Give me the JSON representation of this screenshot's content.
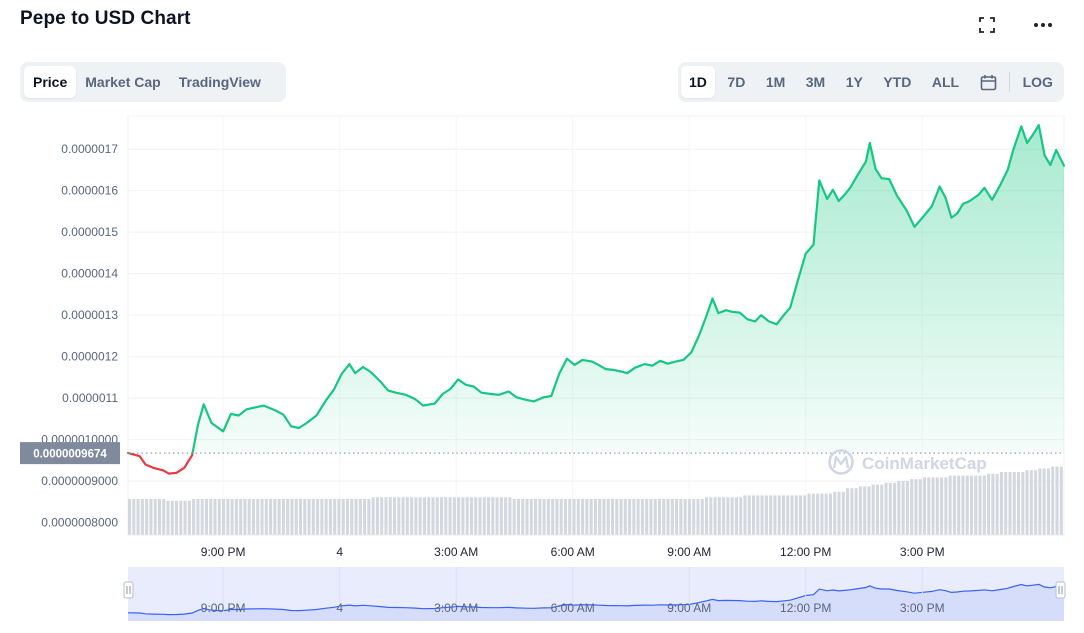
{
  "header": {
    "title": "Pepe to USD Chart",
    "fullscreen_icon": "fullscreen-icon",
    "more_icon": "more-horizontal-icon"
  },
  "view_tabs": [
    {
      "label": "Price",
      "active": true
    },
    {
      "label": "Market Cap",
      "active": false
    },
    {
      "label": "TradingView",
      "active": false
    }
  ],
  "range_tabs": [
    {
      "label": "1D",
      "active": true
    },
    {
      "label": "7D",
      "active": false
    },
    {
      "label": "1M",
      "active": false
    },
    {
      "label": "3M",
      "active": false
    },
    {
      "label": "1Y",
      "active": false
    },
    {
      "label": "YTD",
      "active": false
    },
    {
      "label": "ALL",
      "active": false
    }
  ],
  "calendar_icon": "calendar-icon",
  "log_label": "LOG",
  "watermark": "CoinMarketCap",
  "colors": {
    "up": "#16c784",
    "down": "#ea3943",
    "navigator": "#3861fb",
    "label_bg": "#808a9d"
  },
  "chart_data": {
    "type": "line",
    "title": "Pepe to USD Chart",
    "y_ticks": [
      "0.0000017",
      "0.0000016",
      "0.0000015",
      "0.0000014",
      "0.0000013",
      "0.0000012",
      "0.0000011",
      "0.0000010000",
      "0.0000009000",
      "0.0000008000"
    ],
    "ylim": [
      7.7e-07,
      1.78e-06
    ],
    "x_ticks": [
      "9:00 PM",
      "4",
      "3:00 AM",
      "6:00 AM",
      "9:00 AM",
      "12:00 PM",
      "3:00 PM"
    ],
    "x_tick_hours": [
      21,
      24,
      27,
      30,
      33,
      36,
      39
    ],
    "xlim_hours": [
      18.55,
      42.65
    ],
    "reference_price": 9.674e-07,
    "reference_label": "0.0000009674",
    "series": [
      {
        "points": [
          [
            18.55,
            9.68e-07
          ],
          [
            18.85,
            9.6e-07
          ],
          [
            19.0,
            9.4e-07
          ],
          [
            19.2,
            9.32e-07
          ],
          [
            19.45,
            9.26e-07
          ],
          [
            19.6,
            9.18e-07
          ],
          [
            19.8,
            9.2e-07
          ],
          [
            20.0,
            9.32e-07
          ],
          [
            20.2,
            9.62e-07
          ],
          [
            20.35,
            1.035e-06
          ],
          [
            20.5,
            1.085e-06
          ],
          [
            20.7,
            1.04e-06
          ],
          [
            21.0,
            1.02e-06
          ],
          [
            21.2,
            1.062e-06
          ],
          [
            21.4,
            1.058e-06
          ],
          [
            21.6,
            1.073e-06
          ],
          [
            21.85,
            1.078e-06
          ],
          [
            22.05,
            1.082e-06
          ],
          [
            22.35,
            1.07e-06
          ],
          [
            22.55,
            1.06e-06
          ],
          [
            22.75,
            1.032e-06
          ],
          [
            22.95,
            1.028e-06
          ],
          [
            23.15,
            1.04e-06
          ],
          [
            23.4,
            1.058e-06
          ],
          [
            23.65,
            1.095e-06
          ],
          [
            23.85,
            1.12e-06
          ],
          [
            24.05,
            1.158e-06
          ],
          [
            24.25,
            1.182e-06
          ],
          [
            24.4,
            1.16e-06
          ],
          [
            24.6,
            1.175e-06
          ],
          [
            24.8,
            1.163e-06
          ],
          [
            25.05,
            1.14e-06
          ],
          [
            25.25,
            1.118e-06
          ],
          [
            25.45,
            1.113e-06
          ],
          [
            25.7,
            1.108e-06
          ],
          [
            25.95,
            1.097e-06
          ],
          [
            26.15,
            1.082e-06
          ],
          [
            26.45,
            1.087e-06
          ],
          [
            26.65,
            1.11e-06
          ],
          [
            26.85,
            1.122e-06
          ],
          [
            27.05,
            1.145e-06
          ],
          [
            27.25,
            1.132e-06
          ],
          [
            27.45,
            1.128e-06
          ],
          [
            27.65,
            1.113e-06
          ],
          [
            27.9,
            1.11e-06
          ],
          [
            28.1,
            1.108e-06
          ],
          [
            28.35,
            1.116e-06
          ],
          [
            28.55,
            1.102e-06
          ],
          [
            28.8,
            1.096e-06
          ],
          [
            29.0,
            1.092e-06
          ],
          [
            29.25,
            1.102e-06
          ],
          [
            29.45,
            1.105e-06
          ],
          [
            29.65,
            1.158e-06
          ],
          [
            29.85,
            1.195e-06
          ],
          [
            30.05,
            1.18e-06
          ],
          [
            30.25,
            1.192e-06
          ],
          [
            30.5,
            1.188e-06
          ],
          [
            30.7,
            1.178e-06
          ],
          [
            30.85,
            1.17e-06
          ],
          [
            31.05,
            1.168e-06
          ],
          [
            31.25,
            1.164e-06
          ],
          [
            31.4,
            1.16e-06
          ],
          [
            31.6,
            1.173e-06
          ],
          [
            31.85,
            1.182e-06
          ],
          [
            32.05,
            1.178e-06
          ],
          [
            32.25,
            1.19e-06
          ],
          [
            32.45,
            1.183e-06
          ],
          [
            32.65,
            1.188e-06
          ],
          [
            32.85,
            1.192e-06
          ],
          [
            33.05,
            1.21e-06
          ],
          [
            33.25,
            1.25e-06
          ],
          [
            33.45,
            1.3e-06
          ],
          [
            33.6,
            1.34e-06
          ],
          [
            33.75,
            1.305e-06
          ],
          [
            33.95,
            1.312e-06
          ],
          [
            34.1,
            1.308e-06
          ],
          [
            34.3,
            1.306e-06
          ],
          [
            34.5,
            1.29e-06
          ],
          [
            34.7,
            1.285e-06
          ],
          [
            34.85,
            1.3e-06
          ],
          [
            35.05,
            1.285e-06
          ],
          [
            35.25,
            1.278e-06
          ],
          [
            35.45,
            1.302e-06
          ],
          [
            35.6,
            1.318e-06
          ],
          [
            35.8,
            1.385e-06
          ],
          [
            36.0,
            1.448e-06
          ],
          [
            36.2,
            1.47e-06
          ],
          [
            36.35,
            1.625e-06
          ],
          [
            36.55,
            1.58e-06
          ],
          [
            36.7,
            1.602e-06
          ],
          [
            36.85,
            1.575e-06
          ],
          [
            37.0,
            1.59e-06
          ],
          [
            37.15,
            1.608e-06
          ],
          [
            37.35,
            1.64e-06
          ],
          [
            37.55,
            1.67e-06
          ],
          [
            37.65,
            1.715e-06
          ],
          [
            37.8,
            1.652e-06
          ],
          [
            37.95,
            1.63e-06
          ],
          [
            38.15,
            1.628e-06
          ],
          [
            38.35,
            1.588e-06
          ],
          [
            38.6,
            1.552e-06
          ],
          [
            38.8,
            1.513e-06
          ],
          [
            39.05,
            1.54e-06
          ],
          [
            39.25,
            1.563e-06
          ],
          [
            39.45,
            1.61e-06
          ],
          [
            39.6,
            1.583e-06
          ],
          [
            39.75,
            1.535e-06
          ],
          [
            39.9,
            1.545e-06
          ],
          [
            40.05,
            1.568e-06
          ],
          [
            40.2,
            1.574e-06
          ],
          [
            40.45,
            1.59e-06
          ],
          [
            40.6,
            1.607e-06
          ],
          [
            40.8,
            1.578e-06
          ],
          [
            41.0,
            1.612e-06
          ],
          [
            41.2,
            1.65e-06
          ],
          [
            41.35,
            1.7e-06
          ],
          [
            41.55,
            1.755e-06
          ],
          [
            41.7,
            1.715e-06
          ],
          [
            41.85,
            1.735e-06
          ],
          [
            42.0,
            1.758e-06
          ],
          [
            42.15,
            1.685e-06
          ],
          [
            42.3,
            1.662e-06
          ],
          [
            42.45,
            1.698e-06
          ],
          [
            42.65,
            1.66e-06
          ]
        ]
      }
    ],
    "volume": [
      0.2,
      0.2,
      0.2,
      0.19,
      0.19,
      0.2,
      0.2,
      0.2,
      0.2,
      0.2,
      0.2,
      0.2,
      0.2,
      0.2,
      0.2,
      0.2,
      0.2,
      0.2,
      0.2,
      0.21,
      0.21,
      0.21,
      0.21,
      0.21,
      0.21,
      0.21,
      0.21,
      0.21,
      0.21,
      0.21,
      0.2,
      0.2,
      0.2,
      0.2,
      0.2,
      0.2,
      0.2,
      0.2,
      0.2,
      0.2,
      0.2,
      0.2,
      0.2,
      0.2,
      0.2,
      0.21,
      0.21,
      0.21,
      0.22,
      0.22,
      0.22,
      0.22,
      0.22,
      0.23,
      0.23,
      0.24,
      0.26,
      0.27,
      0.28,
      0.29,
      0.3,
      0.31,
      0.32,
      0.32,
      0.33,
      0.33,
      0.33,
      0.34,
      0.35,
      0.35,
      0.36,
      0.37,
      0.38
    ],
    "navigator": {
      "x_ticks": [
        "9:00 PM",
        "4",
        "3:00 AM",
        "6:00 AM",
        "9:00 AM",
        "12:00 PM",
        "3:00 PM"
      ]
    },
    "grid": true,
    "legend": "none"
  }
}
